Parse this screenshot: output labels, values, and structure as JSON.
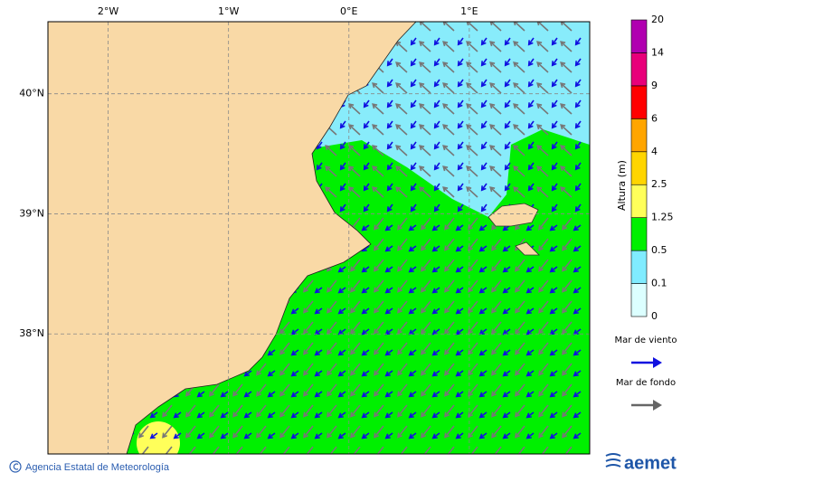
{
  "map": {
    "lon_range": [
      -2.5,
      2.0
    ],
    "lat_range": [
      37.0,
      40.6
    ],
    "lon_ticks": [
      {
        "value": -2,
        "label": "2°W"
      },
      {
        "value": -1,
        "label": "1°W"
      },
      {
        "value": 0,
        "label": "0°E"
      },
      {
        "value": 1,
        "label": "1°E"
      }
    ],
    "lat_ticks": [
      {
        "value": 40,
        "label": "40°N"
      },
      {
        "value": 39,
        "label": "39°N"
      },
      {
        "value": 38,
        "label": "38°N"
      }
    ]
  },
  "colorbar": {
    "title": "Altura (m)",
    "levels": [
      0,
      0.1,
      0.5,
      1.25,
      2.5,
      4,
      6,
      9,
      14,
      20
    ],
    "colors": [
      "#dcffff",
      "#80ecff",
      "#00f000",
      "#ffff5a",
      "#ffd500",
      "#ffa500",
      "#ff0000",
      "#e8007a",
      "#b000b0"
    ]
  },
  "legend": [
    {
      "label": "Mar de viento",
      "color": "#1010e0"
    },
    {
      "label": "Mar de fondo",
      "color": "#666666"
    }
  ],
  "footer": {
    "text": "Agencia Estatal de Meteorología",
    "logo": "aemet"
  }
}
